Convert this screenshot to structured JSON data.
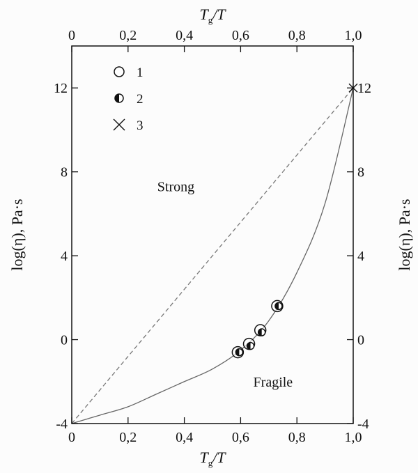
{
  "chart_data": {
    "type": "scatter",
    "x_axis": {
      "label_main": "T",
      "label_sub": "g",
      "label_den": "/T",
      "range": [
        0,
        1.0
      ],
      "ticks": [
        0,
        0.2,
        0.4,
        0.6,
        0.8,
        1.0
      ],
      "tick_labels": [
        "0",
        "0,2",
        "0,4",
        "0,6",
        "0,8",
        "1,0"
      ]
    },
    "y_axis": {
      "label": "log(η), Pa·s",
      "range": [
        -4,
        14
      ],
      "ticks": [
        -4,
        0,
        4,
        8,
        12
      ],
      "tick_labels": [
        "-4",
        "0",
        "4",
        "8",
        "12"
      ]
    },
    "grid": false,
    "legend_position": "top-left",
    "legend": [
      {
        "marker": "open-circle",
        "label": "1"
      },
      {
        "marker": "half-filled-circle",
        "label": "2"
      },
      {
        "marker": "cross",
        "label": "3"
      }
    ],
    "series": [
      {
        "marker": "open-circle",
        "x": [
          0.59,
          0.63,
          0.67,
          0.73
        ],
        "y": [
          -0.6,
          -0.2,
          0.45,
          1.6
        ]
      },
      {
        "marker": "half-filled-circle",
        "x": [
          0.595,
          0.635,
          0.675,
          0.735
        ],
        "y": [
          -0.6,
          -0.3,
          0.35,
          1.6
        ]
      },
      {
        "marker": "cross",
        "x": [
          1.0
        ],
        "y": [
          12.0
        ]
      }
    ],
    "lines": [
      {
        "style": "dashed",
        "x": [
          0,
          1.0
        ],
        "y": [
          -4,
          12
        ]
      },
      {
        "style": "solid",
        "x": [
          0,
          0.1,
          0.2,
          0.3,
          0.4,
          0.5,
          0.6,
          0.7,
          0.8,
          0.9,
          1.0
        ],
        "y": [
          -4.0,
          -3.6,
          -3.2,
          -2.6,
          -2.0,
          -1.4,
          -0.5,
          0.9,
          3.2,
          6.5,
          12.0
        ]
      }
    ],
    "annotations": [
      {
        "text": "Strong",
        "x": 0.37,
        "y": 7.3
      },
      {
        "text": "Fragile",
        "x": 0.715,
        "y": -2.0
      }
    ]
  }
}
